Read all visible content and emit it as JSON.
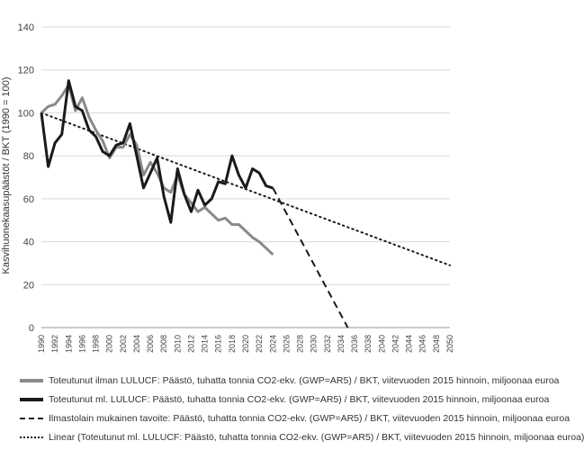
{
  "chart_data": {
    "type": "line",
    "title": "",
    "xlabel": "",
    "ylabel": "Kasvihuonekaasupäästöt / BKT (1990 = 100)",
    "ylim": [
      0,
      140
    ],
    "xlim": [
      1990,
      2050
    ],
    "yticks": [
      "0",
      "20",
      "40",
      "60",
      "80",
      "100",
      "120",
      "140"
    ],
    "xticks": [
      "1990",
      "1992",
      "1994",
      "1996",
      "1998",
      "2000",
      "2002",
      "2004",
      "2006",
      "2008",
      "2010",
      "2012",
      "2014",
      "2016",
      "2018",
      "2020",
      "2022",
      "2024",
      "2026",
      "2028",
      "2030",
      "2032",
      "2034",
      "2036",
      "2038",
      "2040",
      "2042",
      "2044",
      "2046",
      "2048",
      "2050"
    ],
    "grid": "horizontal",
    "series": [
      {
        "name": "Toteutunut ilman LULUCF: Päästö, tuhatta tonnia CO2-ekv. (GWP=AR5) / BKT, viitevuoden 2015 hinnoin, miljoonaa euroa",
        "color": "#8a8a8a",
        "style": "solid",
        "x": [
          1990,
          1991,
          1992,
          1993,
          1994,
          1995,
          1996,
          1997,
          1998,
          1999,
          2000,
          2001,
          2002,
          2003,
          2004,
          2005,
          2006,
          2007,
          2008,
          2009,
          2010,
          2011,
          2012,
          2013,
          2014,
          2015,
          2016,
          2017,
          2018,
          2019,
          2020,
          2021,
          2022,
          2023,
          2024
        ],
        "y": [
          100,
          103,
          104,
          108,
          113,
          101,
          107,
          98,
          92,
          87,
          79,
          84,
          84,
          90,
          85,
          71,
          77,
          72,
          65,
          63,
          71,
          62,
          58,
          54,
          56,
          53,
          50,
          51,
          48,
          48,
          45,
          42,
          40,
          37,
          34
        ]
      },
      {
        "name": "Toteutunut ml. LULUCF: Päästö, tuhatta tonnia CO2-ekv. (GWP=AR5) / BKT, viitevuoden 2015 hinnoin, miljoonaa euroa",
        "color": "#1a1a1a",
        "style": "solid",
        "x": [
          1990,
          1991,
          1992,
          1993,
          1994,
          1995,
          1996,
          1997,
          1998,
          1999,
          2000,
          2001,
          2002,
          2003,
          2004,
          2005,
          2006,
          2007,
          2008,
          2009,
          2010,
          2011,
          2012,
          2013,
          2014,
          2015,
          2016,
          2017,
          2018,
          2019,
          2020,
          2021,
          2022,
          2023,
          2024
        ],
        "y": [
          100,
          75,
          86,
          90,
          115,
          103,
          101,
          92,
          89,
          82,
          80,
          85,
          86,
          95,
          80,
          65,
          72,
          79,
          61,
          49,
          74,
          62,
          54,
          64,
          57,
          60,
          68,
          67,
          80,
          71,
          65,
          74,
          72,
          66,
          65
        ]
      },
      {
        "name": "Ilmastolain mukainen tavoite: Päästö, tuhatta tonnia CO2-ekv. (GWP=AR5) / BKT, viitevuoden 2015 hinnoin, miljoonaa euroa",
        "color": "#1a1a1a",
        "style": "dashed",
        "x": [
          2024,
          2035
        ],
        "y": [
          65,
          0
        ]
      },
      {
        "name": "Linear (Toteutunut ml. LULUCF: Päästö, tuhatta tonnia CO2-ekv. (GWP=AR5) / BKT, viitevuoden 2015 hinnoin, miljoonaa euroa)",
        "color": "#1a1a1a",
        "style": "dotted",
        "x": [
          1990,
          2050
        ],
        "y": [
          100,
          29
        ]
      }
    ]
  }
}
